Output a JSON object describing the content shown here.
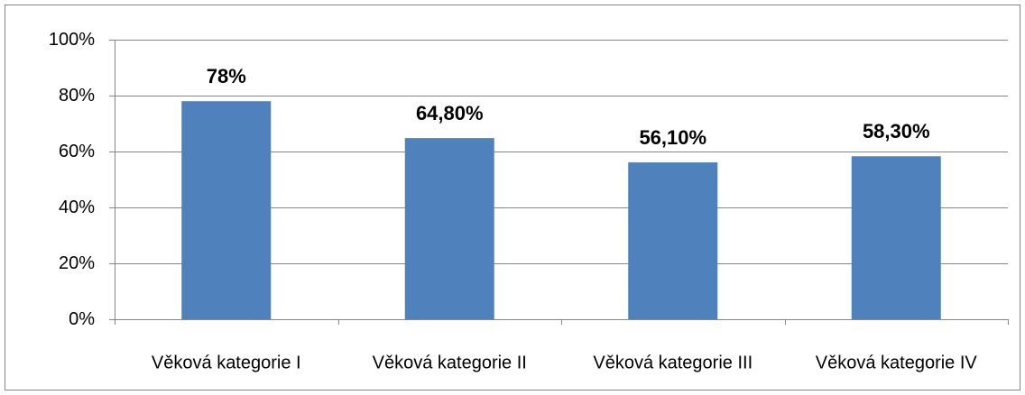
{
  "chart_data": {
    "type": "bar",
    "categories": [
      "Věková kategorie I",
      "Věková kategorie II",
      "Věková kategorie III",
      "Věková kategorie IV"
    ],
    "values": [
      78,
      64.8,
      56.1,
      58.3
    ],
    "value_labels": [
      "78%",
      "64,80%",
      "56,10%",
      "58,30%"
    ],
    "color": "#4f81bd",
    "ylim": [
      0,
      100
    ],
    "yticks": [
      {
        "value": 0,
        "label": "0%"
      },
      {
        "value": 20,
        "label": "20%"
      },
      {
        "value": 40,
        "label": "40%"
      },
      {
        "value": 60,
        "label": "60%"
      },
      {
        "value": 80,
        "label": "80%"
      },
      {
        "value": 100,
        "label": "100%"
      }
    ],
    "grid": true
  }
}
